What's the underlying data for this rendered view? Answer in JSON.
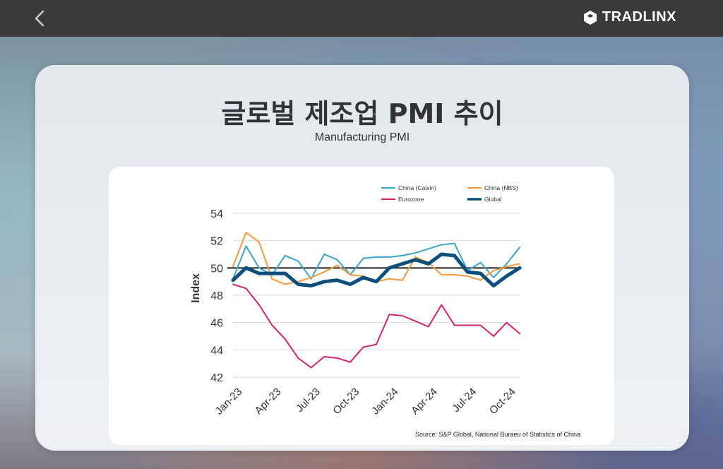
{
  "header": {
    "brand": "TRADLINX",
    "back_icon": "chevron-left-icon",
    "brand_icon": "tradlinx-logo-icon"
  },
  "slide": {
    "title": "글로벌 제조업 PMI 추이",
    "subtitle": "Manufacturing PMI",
    "source": "Source: S&P Global, National Buraeu of Statistics of China"
  },
  "chart_data": {
    "type": "line",
    "title": "",
    "xlabel": "",
    "ylabel": "Index",
    "ylim": [
      42,
      54
    ],
    "yticks": [
      42,
      44,
      46,
      48,
      50,
      52,
      54
    ],
    "x": [
      "Jan-23",
      "Feb-23",
      "Mar-23",
      "Apr-23",
      "May-23",
      "Jun-23",
      "Jul-23",
      "Aug-23",
      "Sep-23",
      "Oct-23",
      "Nov-23",
      "Dec-23",
      "Jan-24",
      "Feb-24",
      "Mar-24",
      "Apr-24",
      "May-24",
      "Jun-24",
      "Jul-24",
      "Aug-24",
      "Sep-24",
      "Oct-24",
      "Nov-24"
    ],
    "xtick_labels": [
      "Jan-23",
      "Apr-23",
      "Jul-23",
      "Oct-23",
      "Jan-24",
      "Apr-24",
      "Jul-24",
      "Oct-24"
    ],
    "reference_line": 50,
    "grid": "horizontal",
    "legend_position": "top-right",
    "series": [
      {
        "name": "China (Caixin)",
        "color": "#3aa5c9",
        "width": 2,
        "values": [
          49.2,
          51.6,
          50.0,
          49.5,
          50.9,
          50.5,
          49.2,
          51.0,
          50.6,
          49.5,
          50.7,
          50.8,
          50.8,
          50.9,
          51.1,
          51.4,
          51.7,
          51.8,
          49.8,
          50.4,
          49.3,
          50.3,
          51.5
        ]
      },
      {
        "name": "China (NBS)",
        "color": "#f39a3c",
        "width": 2,
        "values": [
          50.1,
          52.6,
          51.9,
          49.2,
          48.8,
          49.0,
          49.3,
          49.7,
          50.2,
          49.5,
          49.4,
          49.0,
          49.2,
          49.1,
          50.8,
          50.4,
          49.5,
          49.5,
          49.4,
          49.1,
          49.8,
          50.1,
          50.3
        ]
      },
      {
        "name": "Eurozone",
        "color": "#d2246e",
        "width": 2,
        "values": [
          48.8,
          48.5,
          47.3,
          45.8,
          44.8,
          43.4,
          42.7,
          43.5,
          43.4,
          43.1,
          44.2,
          44.4,
          46.6,
          46.5,
          46.1,
          45.7,
          47.3,
          45.8,
          45.8,
          45.8,
          45.0,
          46.0,
          45.2
        ]
      },
      {
        "name": "Global",
        "color": "#0d4f7c",
        "width": 5,
        "values": [
          49.1,
          50.0,
          49.6,
          49.6,
          49.6,
          48.8,
          48.7,
          49.0,
          49.1,
          48.8,
          49.3,
          49.0,
          50.0,
          50.3,
          50.6,
          50.3,
          51.0,
          50.9,
          49.7,
          49.6,
          48.7,
          49.4,
          50.0
        ]
      }
    ]
  }
}
